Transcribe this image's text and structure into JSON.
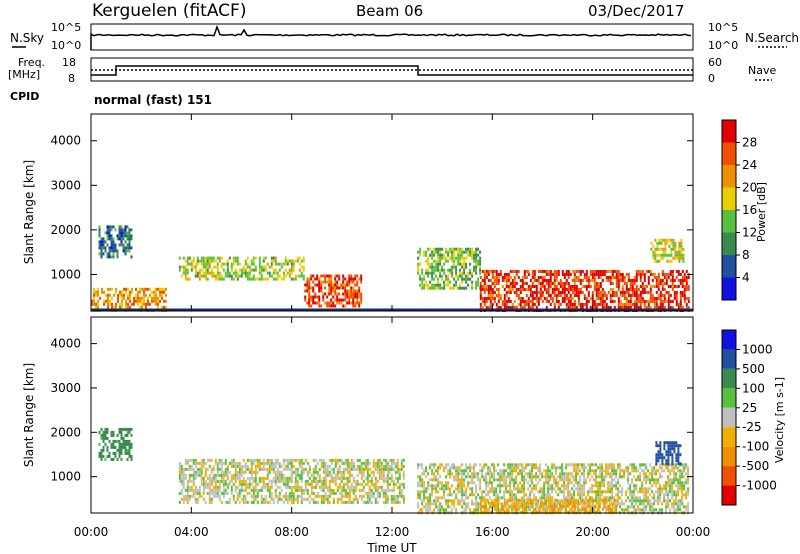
{
  "header": {
    "station": "Kerguelen (fitACF)",
    "beam": "Beam 06",
    "date": "03/Dec/2017"
  },
  "top_panel": {
    "left_label": "N.Sky",
    "right_label": "N.Search",
    "left_ticks": [
      "10^5",
      "10^0"
    ],
    "right_ticks": [
      "10^5",
      "10^0"
    ]
  },
  "freq_panel": {
    "left_label_1": "Freq.",
    "left_label_2": "[MHz]",
    "right_label": "Nave",
    "left_ticks": [
      "18",
      "8"
    ],
    "right_ticks": [
      "60",
      "0"
    ],
    "cpid_label": "CPID",
    "cpid_text": "normal (fast) 151"
  },
  "chart_data": [
    {
      "type": "heatmap",
      "title": "",
      "ylabel": "Slant Range [km]",
      "ylim": [
        180,
        4600
      ],
      "yticks": [
        1000,
        2000,
        3000,
        4000
      ],
      "xlim": [
        0,
        24
      ],
      "colorbar": {
        "label": "Power [dB]",
        "ticks": [
          "28",
          "24",
          "20",
          "16",
          "12",
          "8",
          "4"
        ],
        "colors": [
          "#1010e0",
          "#2050a0",
          "#3a8a50",
          "#58c040",
          "#e8d000",
          "#f09000",
          "#f05000",
          "#e00000"
        ]
      },
      "echo_regions": [
        {
          "t0": 0.0,
          "t1": 3.0,
          "r0": 200,
          "r1": 700,
          "value": 22
        },
        {
          "t0": 0.3,
          "t1": 1.6,
          "r0": 1400,
          "r1": 2100,
          "value": 8
        },
        {
          "t0": 3.5,
          "t1": 8.5,
          "r0": 900,
          "r1": 1400,
          "value": 16
        },
        {
          "t0": 8.5,
          "t1": 10.8,
          "r0": 300,
          "r1": 1000,
          "value": 27
        },
        {
          "t0": 13.0,
          "t1": 15.5,
          "r0": 700,
          "r1": 1600,
          "value": 14
        },
        {
          "t0": 15.5,
          "t1": 23.8,
          "r0": 200,
          "r1": 1100,
          "value": 28
        },
        {
          "t0": 22.3,
          "t1": 23.6,
          "r0": 1300,
          "r1": 1800,
          "value": 18
        }
      ]
    },
    {
      "type": "heatmap",
      "title": "",
      "ylabel": "Slant Range [km]",
      "ylim": [
        180,
        4600
      ],
      "yticks": [
        1000,
        2000,
        3000,
        4000
      ],
      "xlim": [
        0,
        24
      ],
      "colorbar": {
        "label": "Velocity [m s-1]",
        "ticks": [
          "1000",
          "500",
          "100",
          "25",
          "-25",
          "-100",
          "-500",
          "-1000"
        ],
        "colors": [
          "#e00000",
          "#f05000",
          "#f09000",
          "#f0b000",
          "#c0c0c0",
          "#58c040",
          "#3a8a50",
          "#2050a0",
          "#1010e0"
        ]
      },
      "echo_regions": [
        {
          "t0": 0.3,
          "t1": 1.6,
          "r0": 1400,
          "r1": 2100,
          "value": 150
        },
        {
          "t0": 3.5,
          "t1": 12.5,
          "r0": 400,
          "r1": 1400,
          "value": 0
        },
        {
          "t0": 13.0,
          "t1": 23.8,
          "r0": 200,
          "r1": 1300,
          "value": 0
        },
        {
          "t0": 15.5,
          "t1": 21.0,
          "r0": 200,
          "r1": 500,
          "value": -80
        },
        {
          "t0": 22.5,
          "t1": 23.5,
          "r0": 1300,
          "r1": 1800,
          "value": 600
        }
      ]
    }
  ],
  "x_axis": {
    "ticks": [
      "00:00",
      "04:00",
      "08:00",
      "12:00",
      "16:00",
      "20:00",
      "00:00"
    ],
    "label": "Time UT"
  }
}
